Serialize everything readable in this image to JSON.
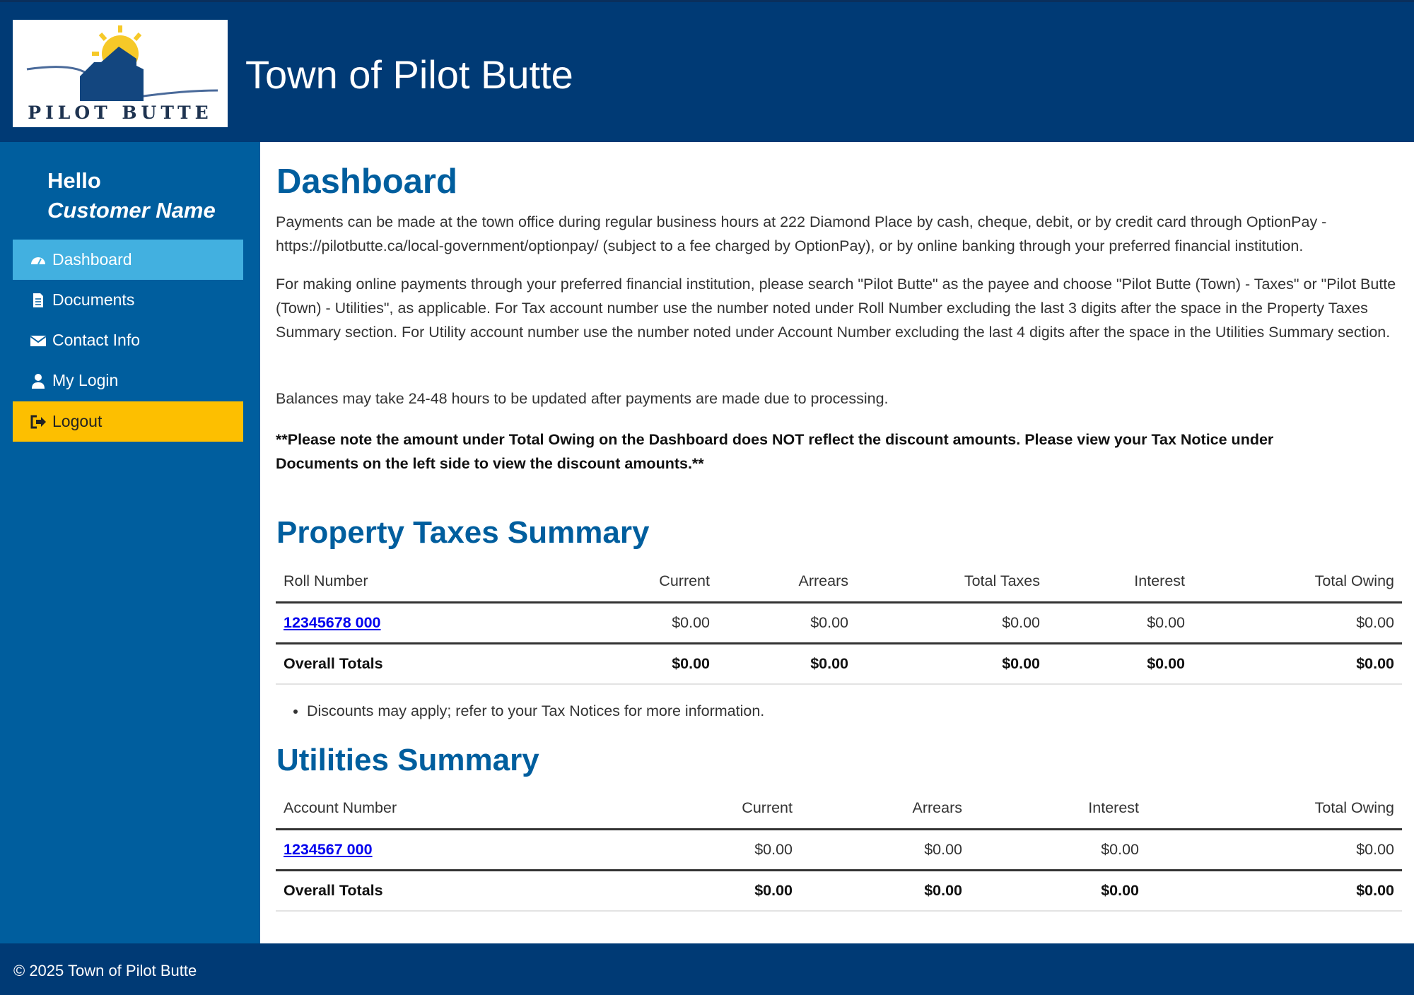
{
  "header": {
    "logo_text": "PILOT BUTTE",
    "title": "Town of Pilot Butte"
  },
  "sidebar": {
    "greeting": "Hello",
    "user": "Customer Name",
    "items": [
      {
        "label": "Dashboard",
        "icon": "dashboard-icon"
      },
      {
        "label": "Documents",
        "icon": "document-icon"
      },
      {
        "label": "Contact Info",
        "icon": "envelope-icon"
      },
      {
        "label": "My Login",
        "icon": "user-icon"
      },
      {
        "label": "Logout",
        "icon": "logout-icon"
      }
    ]
  },
  "main": {
    "title": "Dashboard",
    "paragraphs": [
      "Payments can be made at the town office during regular business hours at 222 Diamond Place by cash, cheque, debit, or by credit card through OptionPay - https://pilotbutte.ca/local-government/optionpay/ (subject to a fee charged by OptionPay), or by online banking through your preferred financial institution.",
      "For making online payments through your preferred financial institution, please search \"Pilot Butte\" as the payee and choose \"Pilot Butte (Town) - Taxes\" or \"Pilot Butte (Town) - Utilities\", as applicable. For Tax account number use the number noted under Roll Number excluding the last 3 digits after the space in the Property Taxes Summary section.  For Utility account number use the number noted under Account Number excluding the last 4 digits after the space in the Utilities Summary section.",
      "Balances may take 24-48 hours to be updated after payments are made due to processing.",
      "**Please note the amount under Total Owing on the Dashboard does NOT reflect the discount amounts. Please view your Tax Notice under Documents on the left side to view the discount amounts.**"
    ],
    "property": {
      "title": "Property Taxes Summary",
      "headers": [
        "Roll Number",
        "Current",
        "Arrears",
        "Total Taxes",
        "Interest",
        "Total Owing"
      ],
      "row": [
        "12345678 000",
        "$0.00",
        "$0.00",
        "$0.00",
        "$0.00",
        "$0.00"
      ],
      "totals": [
        "Overall Totals",
        "$0.00",
        "$0.00",
        "$0.00",
        "$0.00",
        "$0.00"
      ],
      "note": "Discounts may apply; refer to your Tax Notices for more information."
    },
    "utilities": {
      "title": "Utilities Summary",
      "headers": [
        "Account Number",
        "Current",
        "Arrears",
        "Interest",
        "Total Owing"
      ],
      "row": [
        "1234567 000",
        "$0.00",
        "$0.00",
        "$0.00",
        "$0.00"
      ],
      "totals": [
        "Overall Totals",
        "$0.00",
        "$0.00",
        "$0.00",
        "$0.00"
      ]
    }
  },
  "footer": {
    "text": "© 2025 Town of Pilot Butte"
  }
}
